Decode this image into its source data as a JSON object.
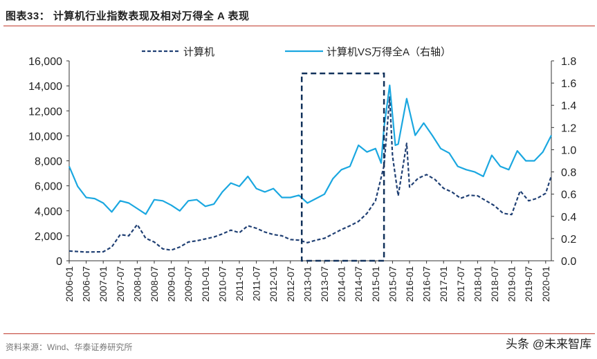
{
  "title": "图表33：  计算机行业指数表现及相对万得全 A 表现",
  "source": "资料来源：Wind、华泰证券研究所",
  "watermark": "头条 @未来智库",
  "chart_data": {
    "type": "line",
    "title": "",
    "legend_position": "top",
    "grid": false,
    "left_axis": {
      "range": [
        0,
        16000
      ],
      "ticks": [
        "0",
        "2,000",
        "4,000",
        "6,000",
        "8,000",
        "10,000",
        "12,000",
        "14,000",
        "16,000"
      ]
    },
    "right_axis": {
      "range": [
        0,
        1.8
      ],
      "ticks": [
        "0.0",
        "0.2",
        "0.4",
        "0.6",
        "0.8",
        "1.0",
        "1.2",
        "1.4",
        "1.6",
        "1.8"
      ]
    },
    "x_ticks": [
      "2006-01",
      "2006-07",
      "2007-01",
      "2007-07",
      "2008-01",
      "2008-07",
      "2009-01",
      "2009-07",
      "2010-01",
      "2010-07",
      "2011-01",
      "2011-07",
      "2012-01",
      "2012-07",
      "2013-01",
      "2013-07",
      "2014-01",
      "2014-07",
      "2015-01",
      "2015-07",
      "2016-01",
      "2016-07",
      "2017-01",
      "2017-07",
      "2018-01",
      "2018-07",
      "2019-01",
      "2019-07",
      "2020-01"
    ],
    "highlight_box": {
      "x": [
        "2012-11",
        "2015-04"
      ],
      "y_left": [
        0,
        15000
      ]
    },
    "series": [
      {
        "name": "计算机",
        "axis": "left",
        "style": "dashed",
        "color": "#1f3f73",
        "points": [
          [
            "2006-01",
            780
          ],
          [
            "2006-07",
            700
          ],
          [
            "2007-01",
            720
          ],
          [
            "2007-04",
            1100
          ],
          [
            "2007-07",
            2100
          ],
          [
            "2007-10",
            2000
          ],
          [
            "2008-01",
            2900
          ],
          [
            "2008-04",
            1800
          ],
          [
            "2008-07",
            1500
          ],
          [
            "2008-10",
            950
          ],
          [
            "2009-01",
            850
          ],
          [
            "2009-04",
            1100
          ],
          [
            "2009-07",
            1500
          ],
          [
            "2009-10",
            1600
          ],
          [
            "2010-01",
            1750
          ],
          [
            "2010-04",
            1900
          ],
          [
            "2010-07",
            2150
          ],
          [
            "2010-10",
            2450
          ],
          [
            "2011-01",
            2250
          ],
          [
            "2011-04",
            2800
          ],
          [
            "2011-07",
            2600
          ],
          [
            "2011-10",
            2300
          ],
          [
            "2012-01",
            2100
          ],
          [
            "2012-04",
            2000
          ],
          [
            "2012-07",
            1700
          ],
          [
            "2012-10",
            1650
          ],
          [
            "2013-01",
            1450
          ],
          [
            "2013-04",
            1650
          ],
          [
            "2013-07",
            1800
          ],
          [
            "2013-10",
            2150
          ],
          [
            "2014-01",
            2500
          ],
          [
            "2014-04",
            2800
          ],
          [
            "2014-07",
            3150
          ],
          [
            "2014-10",
            3800
          ],
          [
            "2015-01",
            4800
          ],
          [
            "2015-04",
            7600
          ],
          [
            "2015-06",
            13100
          ],
          [
            "2015-07",
            8400
          ],
          [
            "2015-09",
            5200
          ],
          [
            "2015-12",
            9400
          ],
          [
            "2016-01",
            5900
          ],
          [
            "2016-04",
            6600
          ],
          [
            "2016-07",
            6900
          ],
          [
            "2016-10",
            6500
          ],
          [
            "2017-01",
            5800
          ],
          [
            "2017-04",
            5500
          ],
          [
            "2017-07",
            5000
          ],
          [
            "2017-10",
            5250
          ],
          [
            "2018-01",
            5200
          ],
          [
            "2018-04",
            4800
          ],
          [
            "2018-07",
            4400
          ],
          [
            "2018-10",
            3800
          ],
          [
            "2019-01",
            3700
          ],
          [
            "2019-04",
            5600
          ],
          [
            "2019-07",
            4800
          ],
          [
            "2019-10",
            5000
          ],
          [
            "2020-01",
            5400
          ],
          [
            "2020-03",
            6800
          ]
        ]
      },
      {
        "name": "计算机VS万得全A（右轴）",
        "axis": "right",
        "style": "solid",
        "color": "#1aa7e0",
        "points": [
          [
            "2006-01",
            0.85
          ],
          [
            "2006-04",
            0.67
          ],
          [
            "2006-07",
            0.57
          ],
          [
            "2006-10",
            0.56
          ],
          [
            "2007-01",
            0.52
          ],
          [
            "2007-04",
            0.44
          ],
          [
            "2007-07",
            0.54
          ],
          [
            "2007-10",
            0.52
          ],
          [
            "2008-01",
            0.47
          ],
          [
            "2008-04",
            0.42
          ],
          [
            "2008-07",
            0.55
          ],
          [
            "2008-10",
            0.54
          ],
          [
            "2009-01",
            0.5
          ],
          [
            "2009-04",
            0.45
          ],
          [
            "2009-07",
            0.54
          ],
          [
            "2009-10",
            0.55
          ],
          [
            "2010-01",
            0.49
          ],
          [
            "2010-04",
            0.51
          ],
          [
            "2010-07",
            0.62
          ],
          [
            "2010-10",
            0.7
          ],
          [
            "2011-01",
            0.67
          ],
          [
            "2011-04",
            0.76
          ],
          [
            "2011-07",
            0.65
          ],
          [
            "2011-10",
            0.62
          ],
          [
            "2012-01",
            0.65
          ],
          [
            "2012-04",
            0.57
          ],
          [
            "2012-07",
            0.57
          ],
          [
            "2012-10",
            0.59
          ],
          [
            "2013-01",
            0.52
          ],
          [
            "2013-04",
            0.56
          ],
          [
            "2013-07",
            0.6
          ],
          [
            "2013-10",
            0.74
          ],
          [
            "2014-01",
            0.82
          ],
          [
            "2014-04",
            0.85
          ],
          [
            "2014-07",
            1.04
          ],
          [
            "2014-10",
            0.98
          ],
          [
            "2015-01",
            1.01
          ],
          [
            "2015-03",
            0.88
          ],
          [
            "2015-04",
            1.2
          ],
          [
            "2015-06",
            1.58
          ],
          [
            "2015-08",
            1.04
          ],
          [
            "2015-09",
            1.05
          ],
          [
            "2015-12",
            1.46
          ],
          [
            "2016-03",
            1.13
          ],
          [
            "2016-06",
            1.24
          ],
          [
            "2016-09",
            1.13
          ],
          [
            "2016-12",
            1.01
          ],
          [
            "2017-03",
            0.97
          ],
          [
            "2017-06",
            0.85
          ],
          [
            "2017-09",
            0.82
          ],
          [
            "2017-12",
            0.8
          ],
          [
            "2018-03",
            0.76
          ],
          [
            "2018-06",
            0.95
          ],
          [
            "2018-09",
            0.85
          ],
          [
            "2018-12",
            0.82
          ],
          [
            "2019-03",
            0.99
          ],
          [
            "2019-06",
            0.9
          ],
          [
            "2019-09",
            0.9
          ],
          [
            "2019-12",
            0.98
          ],
          [
            "2020-03",
            1.13
          ]
        ]
      }
    ]
  }
}
